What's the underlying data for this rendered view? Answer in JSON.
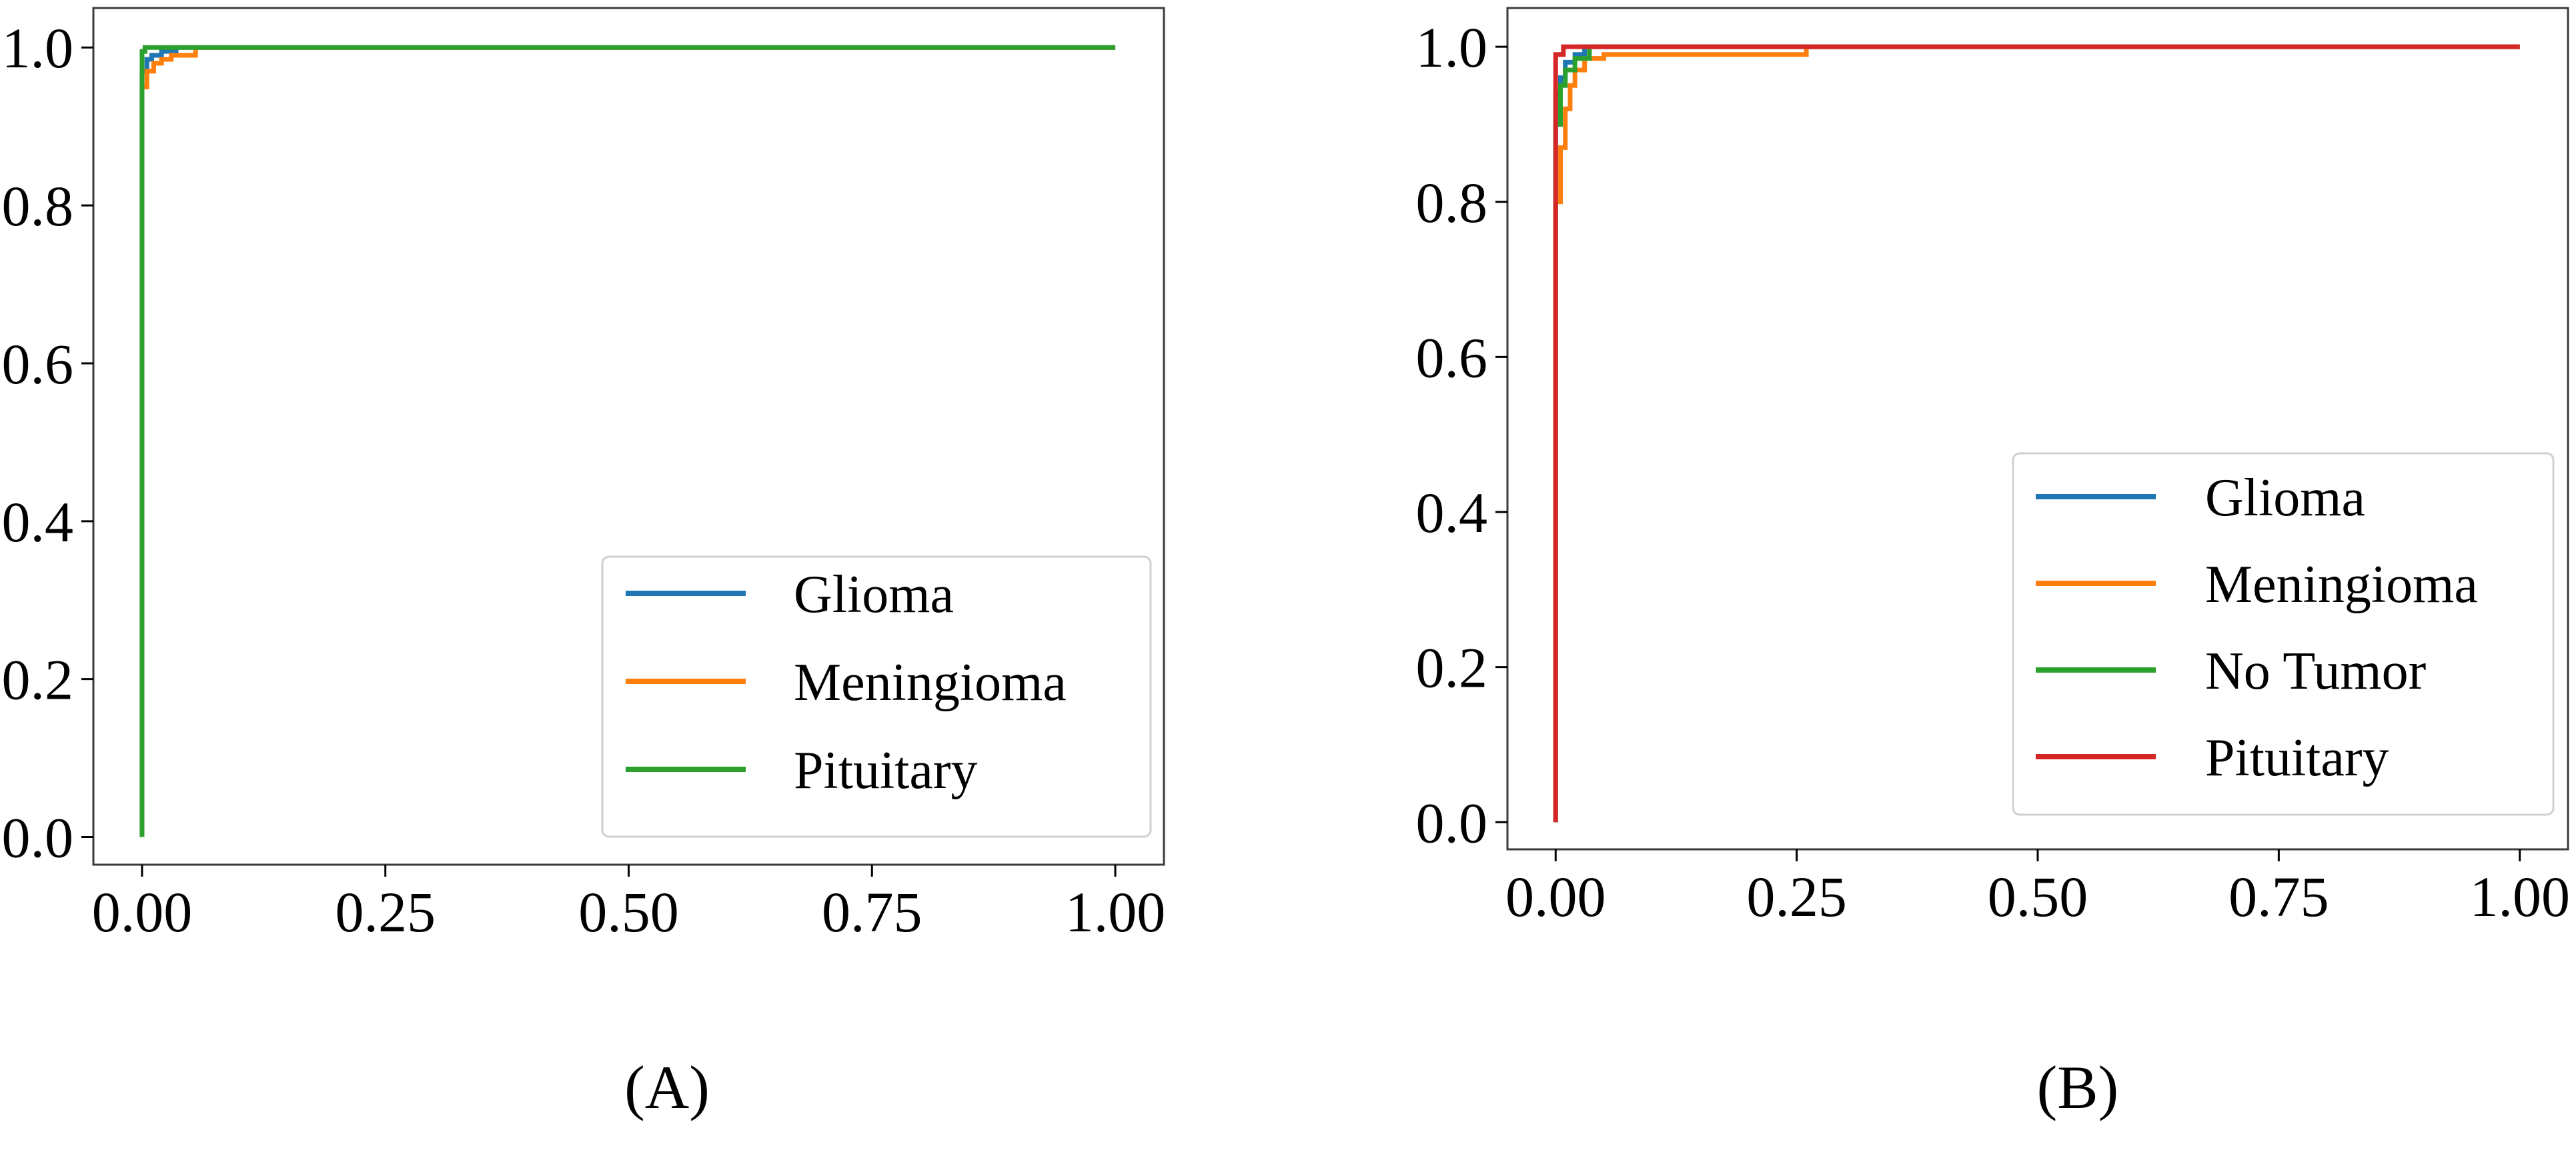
{
  "figure": {
    "panels": [
      {
        "caption": "(A)"
      },
      {
        "caption": "(B)"
      }
    ]
  },
  "chart_data": [
    {
      "type": "line",
      "title": "",
      "xlabel": "",
      "ylabel": "",
      "xlim": [
        -0.05,
        1.05
      ],
      "ylim": [
        -0.035,
        1.05
      ],
      "xticks": [
        0.0,
        0.25,
        0.5,
        0.75,
        1.0
      ],
      "xtick_labels": [
        "0.00",
        "0.25",
        "0.50",
        "0.75",
        "1.00"
      ],
      "yticks": [
        0.0,
        0.2,
        0.4,
        0.6,
        0.8,
        1.0
      ],
      "ytick_labels": [
        "0.0",
        "0.2",
        "0.4",
        "0.6",
        "0.8",
        "1.0"
      ],
      "grid": false,
      "legend": {
        "placement": "lower-right",
        "entries": [
          "Glioma",
          "Meningioma",
          "Pituitary"
        ]
      },
      "series": [
        {
          "name": "Glioma",
          "color": "#1f77b4",
          "x": [
            0.0,
            0.0,
            0.0,
            0.0,
            0.005,
            0.005,
            0.01,
            0.01,
            0.02,
            0.02,
            0.035,
            0.035,
            1.0
          ],
          "y": [
            0.0,
            0.92,
            0.92,
            0.97,
            0.97,
            0.985,
            0.985,
            0.99,
            0.99,
            0.995,
            0.995,
            1.0,
            1.0
          ]
        },
        {
          "name": "Meningioma",
          "color": "#ff7f0e",
          "x": [
            0.0,
            0.0,
            0.005,
            0.005,
            0.012,
            0.012,
            0.02,
            0.02,
            0.03,
            0.03,
            0.055,
            0.055,
            1.0
          ],
          "y": [
            0.0,
            0.95,
            0.95,
            0.97,
            0.97,
            0.98,
            0.98,
            0.985,
            0.985,
            0.99,
            0.99,
            1.0,
            1.0
          ]
        },
        {
          "name": "Pituitary",
          "color": "#2ca02c",
          "x": [
            0.0,
            0.0,
            0.003,
            0.003,
            1.0
          ],
          "y": [
            0.0,
            0.995,
            0.995,
            1.0,
            1.0
          ]
        }
      ]
    },
    {
      "type": "line",
      "title": "",
      "xlabel": "",
      "ylabel": "",
      "xlim": [
        -0.05,
        1.05
      ],
      "ylim": [
        -0.035,
        1.05
      ],
      "xticks": [
        0.0,
        0.25,
        0.5,
        0.75,
        1.0
      ],
      "xtick_labels": [
        "0.00",
        "0.25",
        "0.50",
        "0.75",
        "1.00"
      ],
      "yticks": [
        0.0,
        0.2,
        0.4,
        0.6,
        0.8,
        1.0
      ],
      "ytick_labels": [
        "0.0",
        "0.2",
        "0.4",
        "0.6",
        "0.8",
        "1.0"
      ],
      "grid": false,
      "legend": {
        "placement": "lower-right",
        "entries": [
          "Glioma",
          "Meningioma",
          "No Tumor",
          "Pituitary"
        ]
      },
      "series": [
        {
          "name": "Glioma",
          "color": "#1f77b4",
          "x": [
            0.0,
            0.0,
            0.005,
            0.005,
            0.01,
            0.01,
            0.02,
            0.02,
            0.03,
            0.03,
            1.0
          ],
          "y": [
            0.0,
            0.94,
            0.94,
            0.96,
            0.96,
            0.98,
            0.98,
            0.99,
            0.99,
            1.0,
            1.0
          ]
        },
        {
          "name": "Meningioma",
          "color": "#ff7f0e",
          "x": [
            0.0,
            0.0,
            0.005,
            0.005,
            0.01,
            0.01,
            0.015,
            0.015,
            0.02,
            0.02,
            0.03,
            0.03,
            0.05,
            0.05,
            0.26,
            0.26,
            1.0
          ],
          "y": [
            0.0,
            0.8,
            0.8,
            0.87,
            0.87,
            0.92,
            0.92,
            0.95,
            0.95,
            0.97,
            0.97,
            0.985,
            0.985,
            0.99,
            0.99,
            1.0,
            1.0
          ]
        },
        {
          "name": "No Tumor",
          "color": "#2ca02c",
          "x": [
            0.0,
            0.0,
            0.005,
            0.005,
            0.01,
            0.01,
            0.02,
            0.02,
            0.035,
            0.035,
            1.0
          ],
          "y": [
            0.0,
            0.9,
            0.9,
            0.95,
            0.95,
            0.97,
            0.97,
            0.985,
            0.985,
            1.0,
            1.0
          ]
        },
        {
          "name": "Pituitary",
          "color": "#d62728",
          "x": [
            0.0,
            0.0,
            0.008,
            0.008,
            1.0
          ],
          "y": [
            0.0,
            0.99,
            0.99,
            1.0,
            1.0
          ]
        }
      ]
    }
  ]
}
